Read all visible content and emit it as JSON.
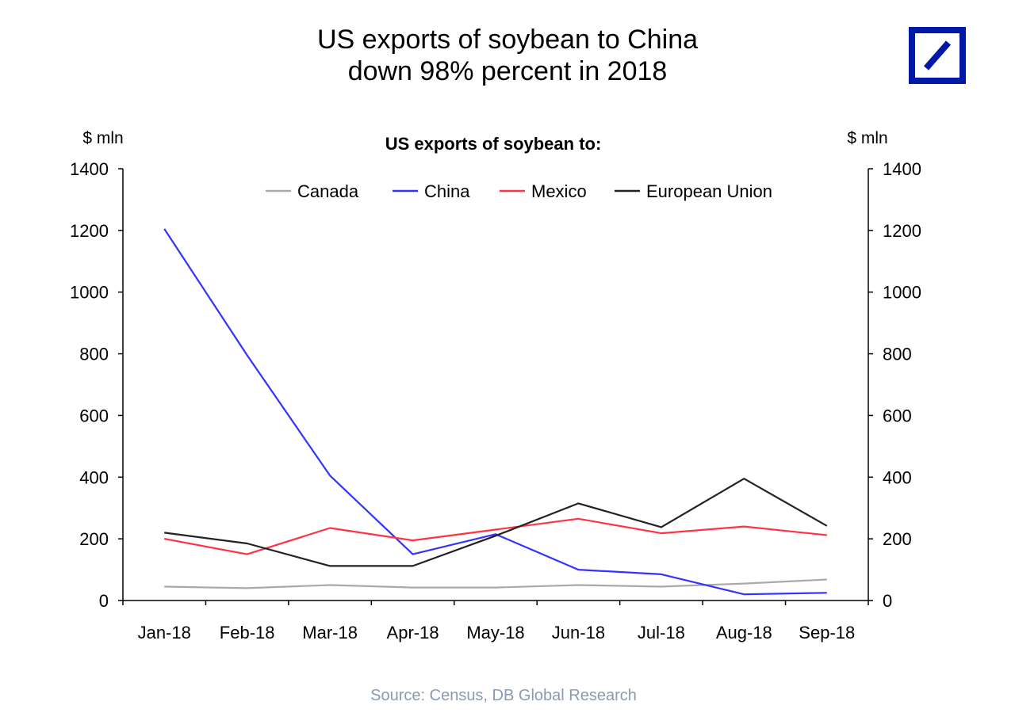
{
  "title_line1": "US exports of soybean to China",
  "title_line2": "down 98% percent in 2018",
  "source": "Source: Census, DB Global Research",
  "logo": {
    "icon": "deutsche-bank-logo-icon",
    "color": "#0018a8"
  },
  "chart_data": {
    "type": "line",
    "title": "US exports of  soybean to:",
    "ylabel_left": "$ mln",
    "ylabel_right": "$ mln",
    "ylim": [
      0,
      1400
    ],
    "yticks": [
      0,
      200,
      400,
      600,
      800,
      1000,
      1200,
      1400
    ],
    "categories": [
      "Jan-18",
      "Feb-18",
      "Mar-18",
      "Apr-18",
      "May-18",
      "Jun-18",
      "Jul-18",
      "Aug-18",
      "Sep-18"
    ],
    "legend_position": "top-center",
    "series": [
      {
        "name": "Canada",
        "color": "#aaaaaa",
        "values": [
          45,
          40,
          50,
          42,
          42,
          50,
          45,
          55,
          68
        ]
      },
      {
        "name": "China",
        "color": "#3333ff",
        "values": [
          1205,
          795,
          405,
          150,
          215,
          100,
          85,
          20,
          25
        ]
      },
      {
        "name": "Mexico",
        "color": "#ff3344",
        "values": [
          200,
          150,
          235,
          195,
          230,
          265,
          218,
          240,
          212
        ]
      },
      {
        "name": "European Union",
        "color": "#222222",
        "values": [
          220,
          185,
          112,
          112,
          210,
          315,
          238,
          395,
          242
        ]
      }
    ]
  }
}
